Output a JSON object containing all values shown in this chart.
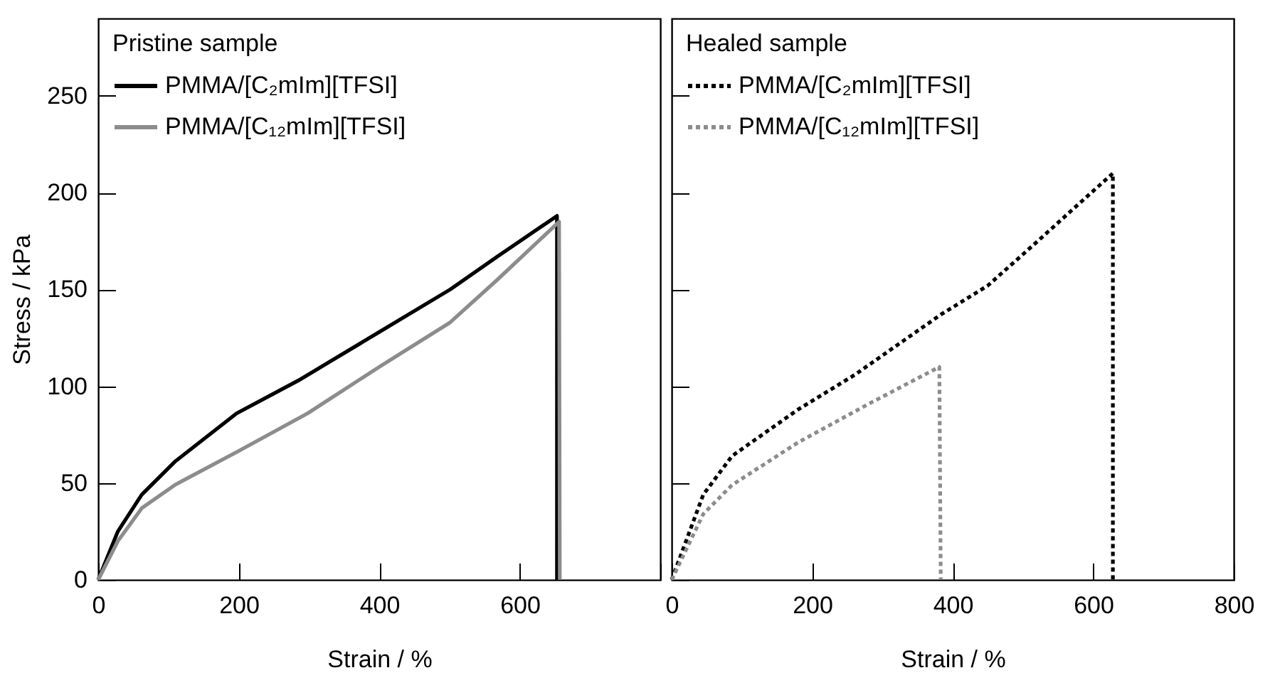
{
  "chart_data": [
    {
      "type": "line",
      "xlabel": "Strain / %",
      "ylabel": "Stress / kPa",
      "legend_title": "Pristine sample",
      "legend": "top left",
      "grid": false,
      "xlim": [
        0,
        800
      ],
      "xticks": [
        0,
        200,
        400,
        600,
        {
          "value": 800,
          "label": null
        }
      ],
      "ylim": [
        0,
        290
      ],
      "yticks": [
        0,
        50,
        100,
        150,
        200,
        250
      ],
      "series": [
        {
          "name": "PMMA/[C₂mIm][TFSI]",
          "color": "#000000",
          "line_style": "solid",
          "x": [
            0,
            28,
            62,
            109,
            197,
            285,
            400,
            501,
            568,
            653,
            653
          ],
          "values": [
            0,
            25,
            44,
            61,
            86,
            103,
            128,
            150,
            167,
            188,
            0
          ]
        },
        {
          "name": "PMMA/[C₁₂mIm][TFSI]",
          "color": "#8c8c8c",
          "line_style": "solid",
          "x": [
            0,
            28,
            62,
            109,
            197,
            298,
            400,
            501,
            568,
            656,
            657
          ],
          "values": [
            0,
            20,
            37,
            49,
            66,
            86,
            110,
            133,
            155,
            185,
            0
          ]
        }
      ]
    },
    {
      "type": "line",
      "xlabel": "Strain / %",
      "legend_title": "Healed sample",
      "legend": "top left",
      "grid": false,
      "tick_labels": "x",
      "xlim": [
        0,
        800
      ],
      "xticks": [
        0,
        200,
        400,
        600,
        800
      ],
      "ylim": [
        0,
        290
      ],
      "yticks": [
        0,
        50,
        100,
        150,
        200,
        250
      ],
      "series": [
        {
          "name": "PMMA/[C₂mIm][TFSI]",
          "color": "#000000",
          "line_style": "dotted",
          "x": [
            0,
            45,
            86,
            180,
            261,
            383,
            450,
            518,
            585,
            628,
            628
          ],
          "values": [
            0,
            44,
            64,
            88,
            106,
            137,
            152,
            174,
            196,
            210,
            0
          ]
        },
        {
          "name": "PMMA/[C₁₂mIm][TFSI]",
          "color": "#8c8c8c",
          "line_style": "dotted",
          "x": [
            0,
            45,
            86,
            180,
            281,
            381,
            383
          ],
          "values": [
            0,
            34,
            49,
            71,
            91,
            110,
            0
          ]
        }
      ]
    }
  ]
}
